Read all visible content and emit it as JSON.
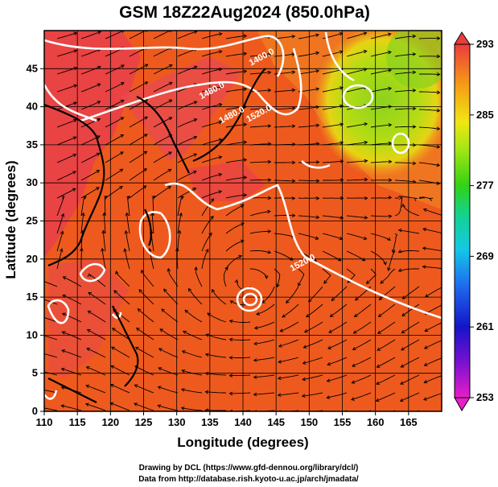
{
  "figure": {
    "title": "GSM 18Z22Aug2024 (850.0hPa)",
    "xlabel": "Longitude (degrees)",
    "ylabel": "Latitude  (degrees)",
    "credit_line1": "Drawing by DCL (https://www.gfd-dennou.org/library/dcl/)",
    "credit_line2": "Data from http://database.rish.kyoto-u.ac.jp/arch/jmadata/"
  },
  "chart_data": {
    "type": "heatmap",
    "xlim": [
      110,
      170
    ],
    "ylim": [
      0,
      50
    ],
    "x_ticks": [
      110,
      115,
      120,
      125,
      130,
      135,
      140,
      145,
      150,
      155,
      160,
      165
    ],
    "x_tick_labels": [
      "110",
      "115",
      "120",
      "125",
      "130",
      "135",
      "140",
      "145",
      "150",
      "155",
      "160",
      "165"
    ],
    "y_ticks": [
      0,
      5,
      10,
      15,
      20,
      25,
      30,
      35,
      40,
      45
    ],
    "y_tick_labels": [
      "0",
      "5",
      "10",
      "15",
      "20",
      "25",
      "30",
      "35",
      "40",
      "45"
    ],
    "colorbar": {
      "min": 253,
      "max": 293,
      "ticks": [
        253,
        261,
        269,
        277,
        285,
        293
      ],
      "tick_labels": [
        "253",
        "261",
        "269",
        "277",
        "285",
        "293"
      ]
    },
    "contour_labels": [
      {
        "text": "1400.0",
        "lon": 143.0,
        "lat": 46.2
      },
      {
        "text": "1480.0",
        "lon": 135.5,
        "lat": 41.8
      },
      {
        "text": "1480.0",
        "lon": 138.5,
        "lat": 38.6
      },
      {
        "text": "1520.0",
        "lon": 142.6,
        "lat": 38.8
      },
      {
        "text": "1520.0",
        "lon": 149.2,
        "lat": 19.2
      }
    ],
    "colors": {
      "warm": "#ee5a1e",
      "hot": "#e8404a",
      "cool_green": "#8fd81e",
      "yellow": "#e4dc14",
      "contour": "#ffffff",
      "streamline": "#000000"
    }
  }
}
